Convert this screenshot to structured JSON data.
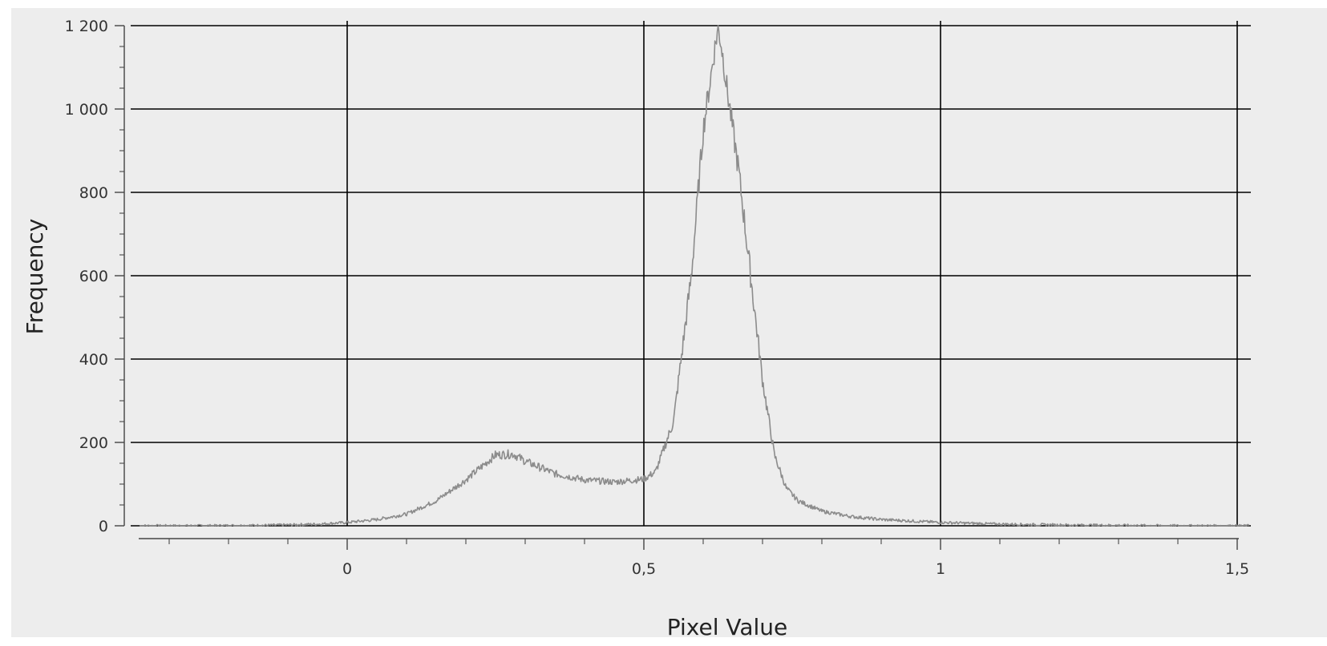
{
  "chart_data": {
    "type": "line",
    "title": "",
    "xlabel": "Pixel Value",
    "ylabel": "Frequency",
    "xlim": [
      -0.35,
      1.52
    ],
    "ylim": [
      0,
      1200
    ],
    "x_ticks": [
      {
        "value": 0,
        "label": "0"
      },
      {
        "value": 0.5,
        "label": "0,5"
      },
      {
        "value": 1,
        "label": "1"
      },
      {
        "value": 1.5,
        "label": "1,5"
      }
    ],
    "y_ticks": [
      {
        "value": 0,
        "label": "0"
      },
      {
        "value": 200,
        "label": "200"
      },
      {
        "value": 400,
        "label": "400"
      },
      {
        "value": 600,
        "label": "600"
      },
      {
        "value": 800,
        "label": "800"
      },
      {
        "value": 1000,
        "label": "1 000"
      },
      {
        "value": 1200,
        "label": "1 200"
      }
    ],
    "grid": true,
    "legend": "none",
    "colors": {
      "background": "#ededed",
      "line": "#8c8c8c",
      "grid": "#000000",
      "page": "#ffffff"
    },
    "series": [
      {
        "color": "#8c8c8c",
        "points": [
          [
            -0.35,
            0
          ],
          [
            -0.25,
            0
          ],
          [
            -0.15,
            1
          ],
          [
            -0.1,
            2
          ],
          [
            -0.05,
            4
          ],
          [
            0,
            8
          ],
          [
            0.05,
            15
          ],
          [
            0.1,
            28
          ],
          [
            0.15,
            60
          ],
          [
            0.2,
            110
          ],
          [
            0.25,
            170
          ],
          [
            0.28,
            172
          ],
          [
            0.3,
            155
          ],
          [
            0.35,
            125
          ],
          [
            0.4,
            110
          ],
          [
            0.45,
            105
          ],
          [
            0.5,
            112
          ],
          [
            0.52,
            130
          ],
          [
            0.55,
            250
          ],
          [
            0.58,
            600
          ],
          [
            0.6,
            950
          ],
          [
            0.62,
            1150
          ],
          [
            0.625,
            1195
          ],
          [
            0.63,
            1160
          ],
          [
            0.64,
            1050
          ],
          [
            0.66,
            850
          ],
          [
            0.68,
            600
          ],
          [
            0.7,
            350
          ],
          [
            0.72,
            170
          ],
          [
            0.74,
            90
          ],
          [
            0.76,
            60
          ],
          [
            0.8,
            35
          ],
          [
            0.85,
            22
          ],
          [
            0.9,
            15
          ],
          [
            1,
            8
          ],
          [
            1.1,
            4
          ],
          [
            1.2,
            2
          ],
          [
            1.3,
            1
          ],
          [
            1.4,
            0
          ],
          [
            1.52,
            0
          ]
        ]
      }
    ]
  }
}
